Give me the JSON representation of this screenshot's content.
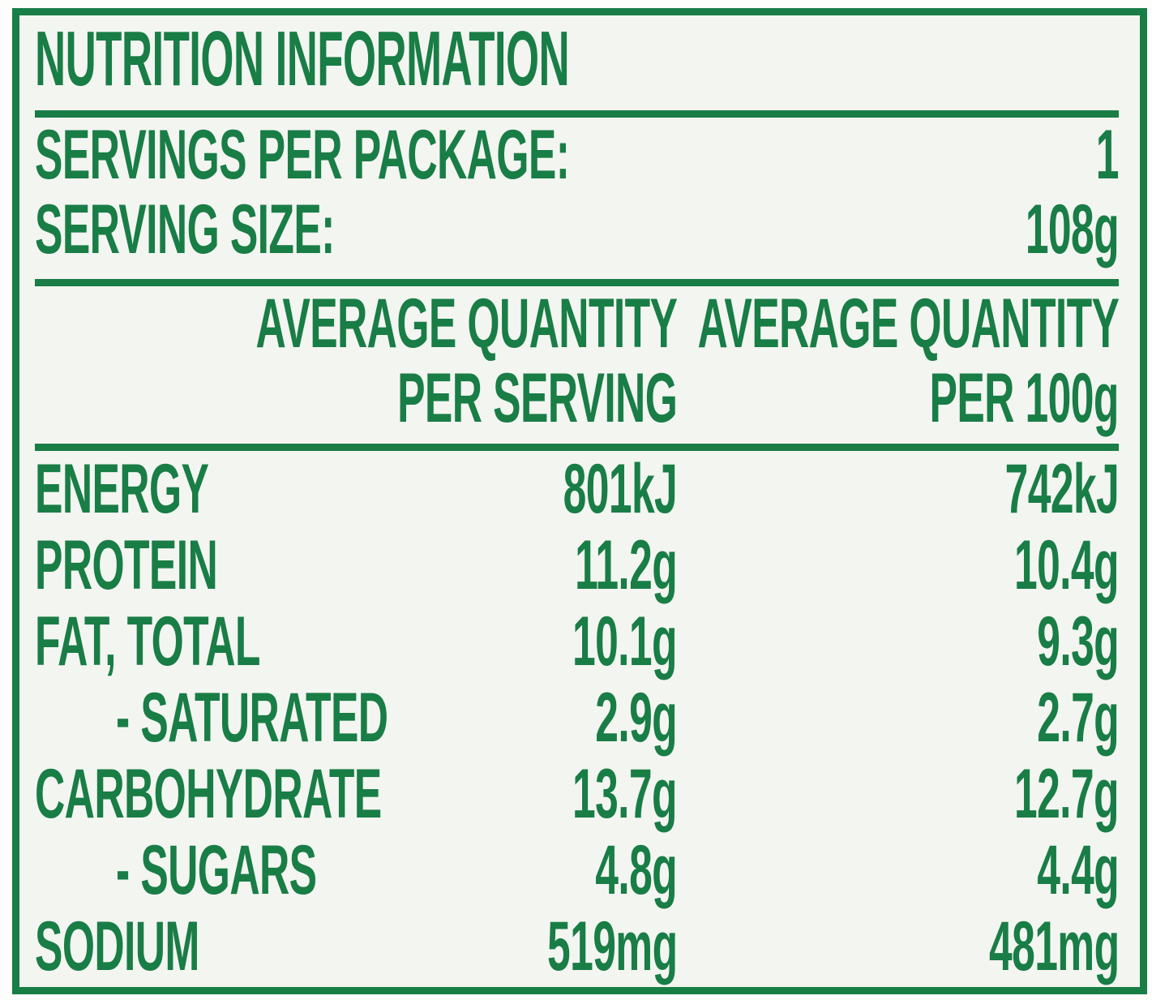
{
  "colors": {
    "accent_green": "#197d46",
    "panel_background": "#f3f5f1",
    "page_background": "#fdfdfc"
  },
  "title": "NUTRITION INFORMATION",
  "serving_info": {
    "servings_per_package": {
      "label": "SERVINGS PER PACKAGE:",
      "value": "1"
    },
    "serving_size": {
      "label": "SERVING SIZE:",
      "value": "108g"
    }
  },
  "table": {
    "column_headers": {
      "per_serving": {
        "line1": "AVERAGE QUANTITY",
        "line2": "PER SERVING"
      },
      "per_100g": {
        "line1": "AVERAGE QUANTITY",
        "line2": "PER 100g"
      }
    },
    "rows": [
      {
        "label": "ENERGY",
        "per_serving": "801kJ",
        "per_100g": "742kJ",
        "indent": false
      },
      {
        "label": "PROTEIN",
        "per_serving": "11.2g",
        "per_100g": "10.4g",
        "indent": false
      },
      {
        "label": "FAT, TOTAL",
        "per_serving": "10.1g",
        "per_100g": "9.3g",
        "indent": false
      },
      {
        "label": "- SATURATED",
        "per_serving": "2.9g",
        "per_100g": "2.7g",
        "indent": true
      },
      {
        "label": "CARBOHYDRATE",
        "per_serving": "13.7g",
        "per_100g": "12.7g",
        "indent": false
      },
      {
        "label": "- SUGARS",
        "per_serving": "4.8g",
        "per_100g": "4.4g",
        "indent": true
      },
      {
        "label": "SODIUM",
        "per_serving": "519mg",
        "per_100g": "481mg",
        "indent": false
      }
    ]
  }
}
